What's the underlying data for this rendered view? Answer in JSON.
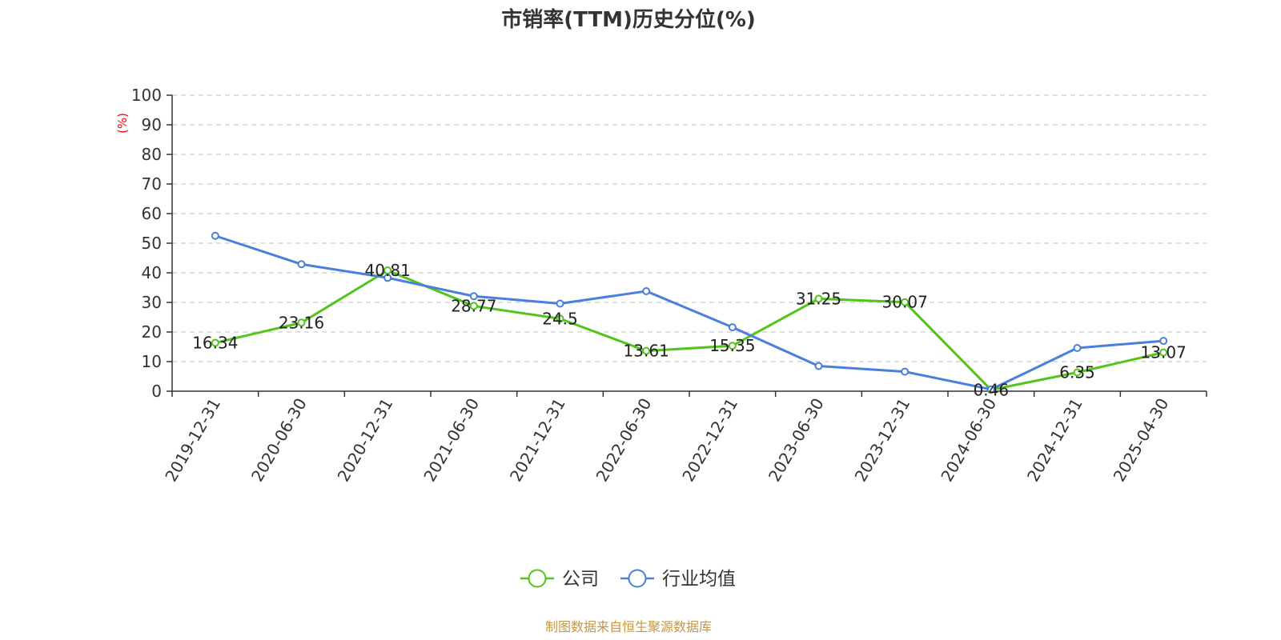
{
  "chart_data": {
    "type": "line",
    "title": "市销率(TTM)历史分位(%)",
    "ylabel": "(%)",
    "ylim": [
      0,
      100
    ],
    "yticks": [
      0,
      10,
      20,
      30,
      40,
      50,
      60,
      70,
      80,
      90,
      100
    ],
    "grid": true,
    "legend_position": "bottom",
    "categories": [
      "2019-12-31",
      "2020-06-30",
      "2020-12-31",
      "2021-06-30",
      "2021-12-31",
      "2022-06-30",
      "2022-12-31",
      "2023-06-30",
      "2023-12-31",
      "2024-06-30",
      "2024-12-31",
      "2025-04-30"
    ],
    "series": [
      {
        "name": "公司",
        "color": "#52c41a",
        "show_labels": true,
        "values": [
          16.34,
          23.16,
          40.81,
          28.77,
          24.5,
          13.61,
          15.35,
          31.25,
          30.07,
          0.46,
          6.35,
          13.07
        ]
      },
      {
        "name": "行业均值",
        "color": "#4a7fdc",
        "show_labels": false,
        "values": [
          52.5,
          42.9,
          38.3,
          32.1,
          29.6,
          33.8,
          21.6,
          8.5,
          6.6,
          0.6,
          14.6,
          17.0
        ]
      }
    ],
    "source_note": "制图数据来自恒生聚源数据库"
  },
  "colors": {
    "title": "#333333",
    "axis": "#333333",
    "grid": "#cccccc",
    "ylabel": "#ff0000",
    "source_note": "#c8963e"
  }
}
